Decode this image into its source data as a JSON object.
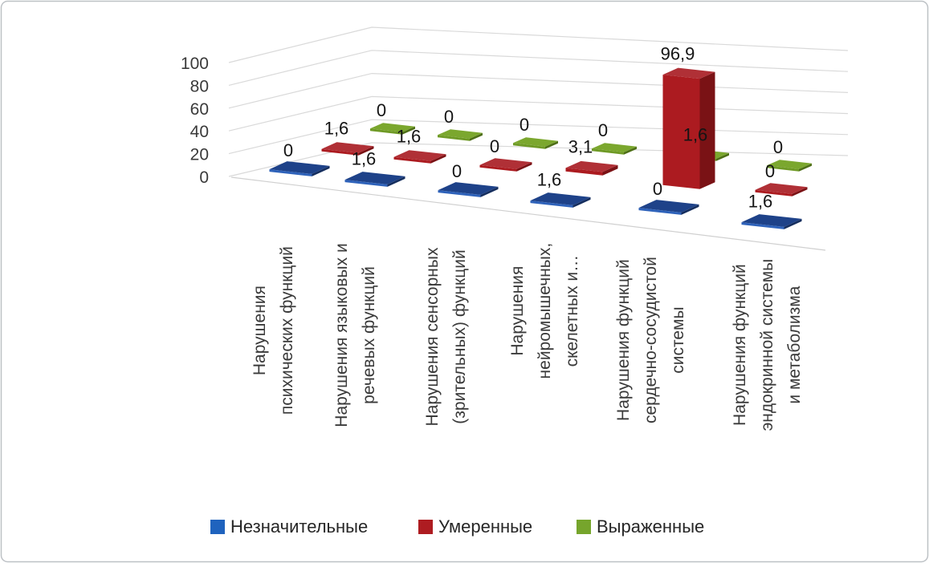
{
  "chart_data": {
    "type": "bar",
    "projection": "3d-column",
    "title": "",
    "categories": [
      "Нарушения психических функций",
      "Нарушения языковых и речевых функций",
      "Нарушения сенсорных (зрительных) функций",
      "Нарушения нейромышечных, скелетных и…",
      "Нарушения функций сердечно-сосудистой системы",
      "Нарушения функций эндокринной системы и метаболизма"
    ],
    "category_label_lines": [
      [
        "Нарушения",
        "психических функций"
      ],
      [
        "Нарушения языковых и",
        "речевых функций"
      ],
      [
        "Нарушения сенсорных",
        "(зрительных) функций"
      ],
      [
        "Нарушения",
        "нейромышечных,",
        "скелетных и…"
      ],
      [
        "Нарушения функций",
        "сердечно-сосудистой",
        "системы"
      ],
      [
        "Нарушения функций",
        "эндокринной системы",
        "и метаболизма"
      ]
    ],
    "series": [
      {
        "name": "Незначительные",
        "color": "#1F63BE",
        "faces": {
          "top": "#1E4289",
          "front": "#2E62BA",
          "side": "#152E5E"
        },
        "values": [
          0,
          1.6,
          0,
          1.6,
          0,
          1.6
        ],
        "labels": [
          "0",
          "1,6",
          "0",
          "1,6",
          "0",
          "1,6"
        ]
      },
      {
        "name": "Умеренные",
        "color": "#AE1C21",
        "faces": {
          "top": "#B03036",
          "front": "#AC1B20",
          "side": "#7A1215"
        },
        "values": [
          1.6,
          1.6,
          0,
          3.1,
          96.9,
          0
        ],
        "labels": [
          "1,6",
          "1,6",
          "0",
          "3,1",
          "96,9",
          "0"
        ]
      },
      {
        "name": "Выраженные",
        "color": "#76A52C",
        "faces": {
          "top": "#7BA72E",
          "front": "#6F9A26",
          "side": "#4E6F17"
        },
        "values": [
          0,
          0,
          0,
          0,
          1.6,
          0
        ],
        "labels": [
          "0",
          "0",
          "0",
          "0",
          "1,6",
          "0"
        ]
      }
    ],
    "yticks": [
      "0",
      "20",
      "40",
      "60",
      "80",
      "100"
    ],
    "ylim": [
      0,
      100
    ],
    "grid": true,
    "legend_position": "bottom",
    "legend_items": [
      "Незначительные",
      "Умеренные",
      "Выраженные"
    ]
  },
  "colors": {
    "grid": "#D9D9D9",
    "floor_edge": "#D0D0D0",
    "axis_text": "#3A3A3A",
    "label_text": "#141414",
    "border": "#BDC1C5",
    "background": "#FFFFFF"
  }
}
